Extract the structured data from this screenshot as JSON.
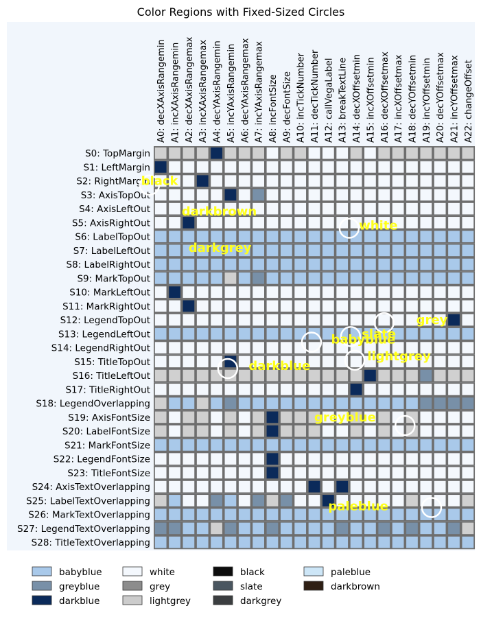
{
  "chart_data": {
    "type": "heatmap",
    "title": "Color Regions with Fixed-Sized Circles",
    "columns": [
      "A0: decXAxisRangemin",
      "A1: incXAxisRangemin",
      "A2: decXAxisRangemax",
      "A3: incXAxisRangemax",
      "A4: decYAxisRangemin",
      "A5: incYAxisRangemin",
      "A6: decYAxisRangemax",
      "A7: incYAxisRangemax",
      "A8: incFontSize",
      "A9: decFontSize",
      "A10: incTickNumber",
      "A11: decTickNumber",
      "A12: callVegaLabel",
      "A13: breakTextLine",
      "A14: decXOffsetmin",
      "A15: incXOffsetmin",
      "A16: decXOffsetmax",
      "A17: incXOffsetmax",
      "A18: decYOffsetmin",
      "A19: incYOffsetmin",
      "A20: decYOffsetmax",
      "A21: incYOffsetmax",
      "A22: changeOffset"
    ],
    "rows": [
      "S0: TopMargin",
      "S1: LeftMargin",
      "S2: RightMargin",
      "S3: AxisTopOut",
      "S4: AxisLeftOut",
      "S5: AxisRightOut",
      "S6: LabelTopOut",
      "S7: LabelLeftOut",
      "S8: LabelRightOut",
      "S9: MarkTopOut",
      "S10: MarkLeftOut",
      "S11: MarkRightOut",
      "S12: LegendTopOut",
      "S13: LegendLeftOut",
      "S14: LegendRightOut",
      "S15: TitleTopOut",
      "S16: TitleLeftOut",
      "S17: TitleRightOut",
      "S18: LegendOverlapping",
      "S19: AxisFontSize",
      "S20: LabelFontSize",
      "S21: MarkFontSize",
      "S22: LegendFontSize",
      "S23: TitleFontSize",
      "S24: AxisTextOverlapping",
      "S25: LabelTextOverlapping",
      "S26: MarkTextOverlapping",
      "S27: LegendTextOverlapping",
      "S28: TitleTextOverlapping"
    ],
    "scale": [
      "#f4f8fd",
      "#d0d0d0",
      "#a9c9ea",
      "#7890a8",
      "#0b2a5a"
    ],
    "values": [
      [
        1,
        1,
        1,
        1,
        4,
        1,
        1,
        1,
        0,
        1,
        1,
        0,
        0,
        0,
        1,
        0,
        1,
        1,
        1,
        1,
        1,
        1,
        1
      ],
      [
        4,
        0,
        0,
        0,
        0,
        0,
        0,
        0,
        0,
        0,
        0,
        0,
        0,
        0,
        0,
        0,
        0,
        0,
        0,
        0,
        0,
        0,
        0
      ],
      [
        0,
        0,
        0,
        4,
        0,
        0,
        0,
        0,
        0,
        0,
        0,
        0,
        0,
        0,
        0,
        0,
        0,
        0,
        0,
        0,
        0,
        0,
        0
      ],
      [
        0,
        0,
        0,
        0,
        0,
        4,
        0,
        3,
        0,
        0,
        0,
        0,
        0,
        0,
        0,
        0,
        0,
        0,
        0,
        0,
        0,
        0,
        0
      ],
      [
        0,
        0,
        0,
        0,
        0,
        0,
        0,
        0,
        0,
        0,
        0,
        0,
        0,
        0,
        0,
        0,
        0,
        0,
        0,
        0,
        0,
        0,
        0
      ],
      [
        0,
        0,
        4,
        0,
        0,
        0,
        0,
        0,
        0,
        0,
        0,
        0,
        0,
        0,
        0,
        0,
        0,
        0,
        0,
        0,
        0,
        0,
        0
      ],
      [
        2,
        2,
        2,
        2,
        2,
        2,
        2,
        2,
        2,
        2,
        2,
        2,
        2,
        2,
        2,
        2,
        2,
        2,
        2,
        2,
        2,
        2,
        2
      ],
      [
        2,
        2,
        2,
        2,
        2,
        2,
        2,
        2,
        2,
        2,
        2,
        2,
        2,
        2,
        2,
        2,
        2,
        2,
        2,
        2,
        2,
        2,
        2
      ],
      [
        2,
        2,
        2,
        2,
        2,
        2,
        2,
        2,
        2,
        2,
        2,
        2,
        2,
        2,
        2,
        2,
        2,
        2,
        2,
        2,
        2,
        2,
        2
      ],
      [
        2,
        2,
        2,
        2,
        2,
        1,
        2,
        3,
        2,
        2,
        2,
        2,
        2,
        2,
        2,
        2,
        2,
        2,
        2,
        2,
        2,
        2,
        2
      ],
      [
        0,
        4,
        0,
        0,
        0,
        0,
        0,
        0,
        0,
        0,
        0,
        0,
        0,
        0,
        0,
        0,
        0,
        0,
        0,
        0,
        0,
        0,
        0
      ],
      [
        0,
        0,
        4,
        0,
        0,
        0,
        0,
        0,
        0,
        0,
        0,
        0,
        0,
        0,
        0,
        0,
        0,
        0,
        0,
        0,
        0,
        0,
        0
      ],
      [
        0,
        0,
        0,
        0,
        0,
        0,
        0,
        0,
        0,
        0,
        0,
        0,
        0,
        0,
        0,
        0,
        0,
        0,
        0,
        0,
        0,
        4,
        0
      ],
      [
        2,
        2,
        2,
        2,
        2,
        2,
        2,
        2,
        2,
        2,
        2,
        2,
        2,
        2,
        2,
        2,
        2,
        2,
        2,
        2,
        2,
        2,
        2
      ],
      [
        0,
        0,
        0,
        0,
        0,
        0,
        0,
        0,
        0,
        0,
        0,
        0,
        0,
        0,
        0,
        0,
        0,
        0,
        0,
        0,
        0,
        0,
        0
      ],
      [
        0,
        0,
        0,
        0,
        0,
        4,
        0,
        0,
        0,
        0,
        0,
        0,
        0,
        0,
        0,
        0,
        0,
        0,
        0,
        0,
        0,
        0,
        0
      ],
      [
        1,
        1,
        1,
        1,
        1,
        1,
        1,
        1,
        1,
        1,
        1,
        1,
        1,
        1,
        1,
        4,
        1,
        1,
        1,
        3,
        1,
        1,
        1
      ],
      [
        0,
        0,
        0,
        0,
        0,
        0,
        0,
        0,
        0,
        0,
        0,
        0,
        0,
        0,
        4,
        0,
        0,
        0,
        0,
        0,
        0,
        0,
        0
      ],
      [
        1,
        2,
        2,
        1,
        2,
        3,
        2,
        2,
        2,
        2,
        2,
        2,
        2,
        2,
        2,
        2,
        2,
        2,
        2,
        3,
        3,
        3,
        3
      ],
      [
        1,
        0,
        1,
        1,
        0,
        1,
        0,
        1,
        4,
        1,
        1,
        1,
        0,
        0,
        1,
        0,
        1,
        0,
        1,
        0,
        0,
        0,
        0
      ],
      [
        1,
        0,
        1,
        1,
        0,
        1,
        0,
        1,
        4,
        1,
        1,
        1,
        0,
        0,
        1,
        0,
        1,
        0,
        1,
        0,
        0,
        0,
        0
      ],
      [
        2,
        2,
        2,
        2,
        2,
        2,
        2,
        2,
        2,
        2,
        2,
        2,
        2,
        2,
        2,
        2,
        2,
        2,
        2,
        2,
        2,
        2,
        2
      ],
      [
        0,
        0,
        0,
        0,
        0,
        0,
        0,
        0,
        4,
        0,
        0,
        0,
        0,
        0,
        0,
        0,
        0,
        0,
        0,
        0,
        0,
        0,
        0
      ],
      [
        0,
        0,
        0,
        0,
        0,
        0,
        0,
        0,
        4,
        0,
        0,
        0,
        0,
        0,
        0,
        0,
        0,
        0,
        0,
        0,
        0,
        0,
        0
      ],
      [
        0,
        0,
        0,
        0,
        0,
        0,
        0,
        0,
        0,
        0,
        0,
        4,
        0,
        4,
        0,
        0,
        0,
        0,
        0,
        0,
        0,
        0,
        0
      ],
      [
        1,
        2,
        0,
        0,
        3,
        2,
        0,
        3,
        1,
        3,
        0,
        0,
        4,
        0,
        0,
        0,
        0,
        0,
        1,
        0,
        0,
        0,
        1
      ],
      [
        2,
        2,
        2,
        2,
        2,
        2,
        2,
        2,
        2,
        2,
        2,
        2,
        2,
        2,
        2,
        2,
        2,
        2,
        2,
        2,
        2,
        2,
        2
      ],
      [
        3,
        3,
        2,
        2,
        1,
        3,
        2,
        2,
        3,
        2,
        2,
        2,
        2,
        3,
        2,
        2,
        3,
        2,
        3,
        2,
        2,
        3,
        1
      ],
      [
        2,
        2,
        2,
        2,
        2,
        2,
        2,
        2,
        2,
        2,
        2,
        2,
        2,
        2,
        2,
        2,
        2,
        2,
        2,
        2,
        2,
        2,
        2
      ]
    ],
    "annotations": [
      {
        "label": "black",
        "col": -0.9,
        "row": 2
      },
      {
        "label": "darkbrown",
        "col": 2.0,
        "row": 4.2
      },
      {
        "label": "white",
        "col": 14.7,
        "row": 5.2
      },
      {
        "label": "darkgrey",
        "col": 2.5,
        "row": 6.8
      },
      {
        "label": "grey",
        "col": 18.8,
        "row": 12.0
      },
      {
        "label": "slate",
        "col": 14.9,
        "row": 13.0
      },
      {
        "label": "babyblue",
        "col": 12.7,
        "row": 13.4
      },
      {
        "label": "lightgrey",
        "col": 15.3,
        "row": 14.6
      },
      {
        "label": "darkblue",
        "col": 6.8,
        "row": 15.3
      },
      {
        "label": "greyblue",
        "col": 11.5,
        "row": 19.0
      },
      {
        "label": "paleblue",
        "col": 12.5,
        "row": 25.4
      }
    ],
    "circles": [
      {
        "col": -0.8,
        "row": 2.3
      },
      {
        "col": 13.5,
        "row": 5.4
      },
      {
        "col": 16.0,
        "row": 12.2
      },
      {
        "col": 13.6,
        "row": 13.2
      },
      {
        "col": 10.8,
        "row": 13.6
      },
      {
        "col": 13.9,
        "row": 14.9
      },
      {
        "col": 4.8,
        "row": 15.5
      },
      {
        "col": 17.5,
        "row": 19.6
      },
      {
        "col": 19.4,
        "row": 25.5
      }
    ],
    "legend": {
      "position": "bottom",
      "entries": [
        {
          "label": "babyblue",
          "color": "#a9c9ea"
        },
        {
          "label": "greyblue",
          "color": "#7890a8"
        },
        {
          "label": "darkblue",
          "color": "#0b2a5a"
        },
        {
          "label": "white",
          "color": "#f4f8fd"
        },
        {
          "label": "grey",
          "color": "#8c8c8c"
        },
        {
          "label": "lightgrey",
          "color": "#cccccc"
        },
        {
          "label": "black",
          "color": "#0d0d0d"
        },
        {
          "label": "slate",
          "color": "#4a5660"
        },
        {
          "label": "darkgrey",
          "color": "#3b3e40"
        },
        {
          "label": "paleblue",
          "color": "#cde6f7"
        },
        {
          "label": "darkbrown",
          "color": "#2e1f14"
        }
      ]
    }
  }
}
